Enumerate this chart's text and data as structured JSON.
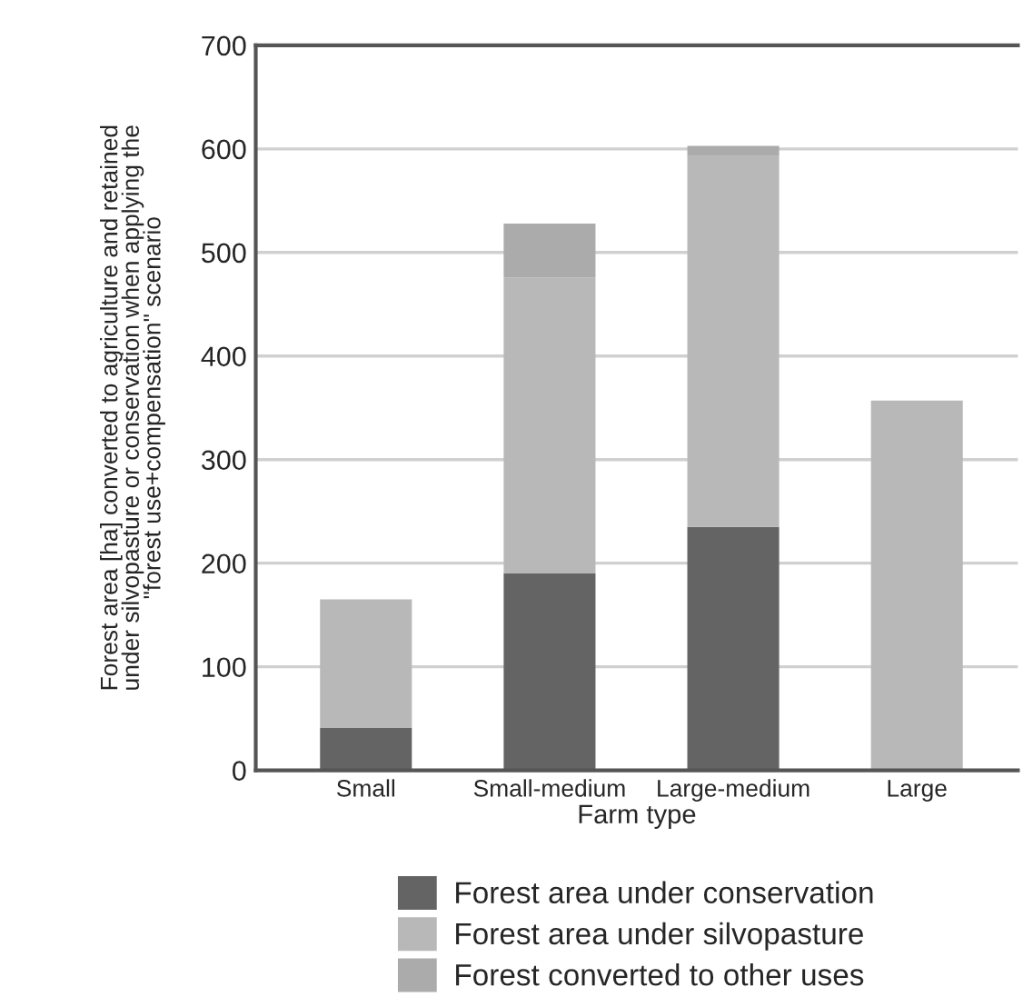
{
  "chart_data": {
    "type": "bar",
    "stacked": true,
    "xlabel": "Farm type",
    "ylabel": "Forest area [ha] converted to agriculture and retained\nunder silvopasture or conservation when applying the\n\"forest use+compensation\" scenario",
    "categories": [
      "Small",
      "Small-medium",
      "Large-medium",
      "Large"
    ],
    "series": [
      {
        "name": "Forest area under conservation",
        "color": "#646464",
        "values": [
          41,
          190,
          235,
          0
        ]
      },
      {
        "name": "Forest area under silvopasture",
        "color": "#b8b8b8",
        "values": [
          124,
          286,
          358,
          357
        ]
      },
      {
        "name": "Forest converted to other uses",
        "color": "#ababab",
        "values": [
          0,
          52,
          10,
          0
        ]
      }
    ],
    "ylim": [
      0,
      700
    ],
    "yticks": [
      0,
      100,
      200,
      300,
      400,
      500,
      600,
      700
    ],
    "grid": "y",
    "legend": "bottom"
  }
}
